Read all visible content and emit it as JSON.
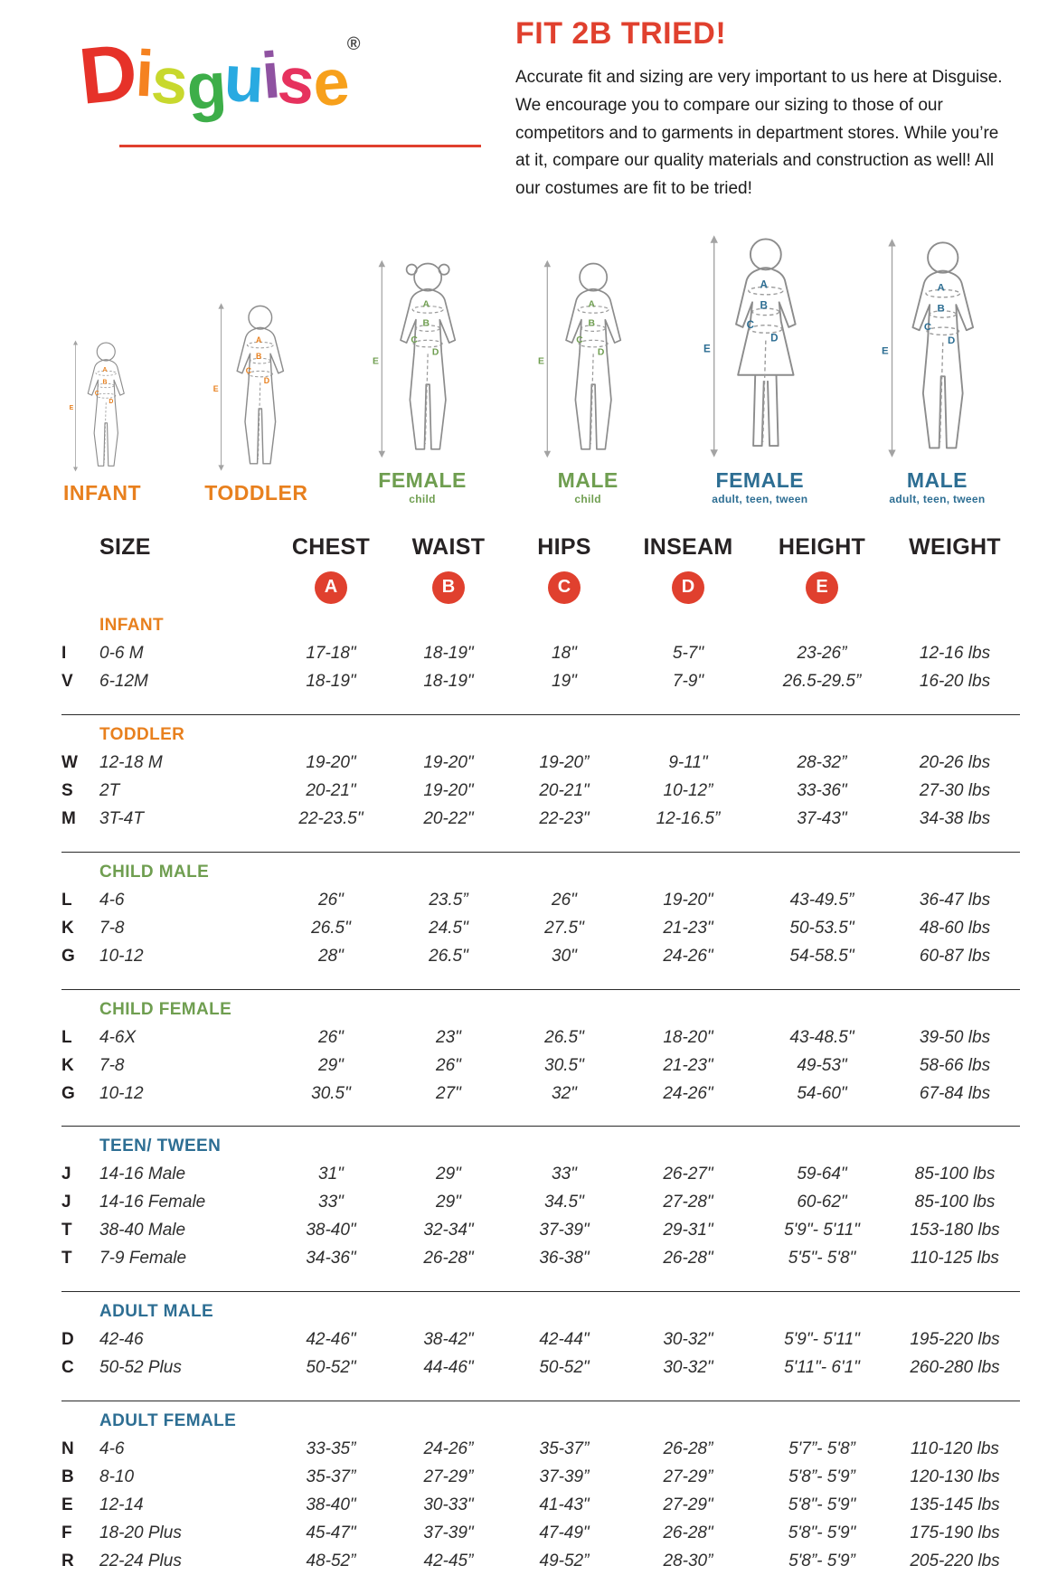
{
  "palette": {
    "red": "#e0402e",
    "orange": "#e8801e",
    "green": "#6f9e50",
    "blue": "#2d6e93",
    "text": "#231f20"
  },
  "logo": {
    "word": "Disguise",
    "registered": "®",
    "letters": [
      {
        "ch": "D",
        "color": "#e63229"
      },
      {
        "ch": "i",
        "color": "#f58220"
      },
      {
        "ch": "s",
        "color": "#c8d82e"
      },
      {
        "ch": "g",
        "color": "#3dae49"
      },
      {
        "ch": "u",
        "color": "#29aae1"
      },
      {
        "ch": "i",
        "color": "#8f52a1"
      },
      {
        "ch": "s",
        "color": "#e6325e"
      },
      {
        "ch": "e",
        "color": "#f7a01b"
      }
    ]
  },
  "intro": {
    "title": "FIT 2B TRIED!",
    "body": "Accurate fit and sizing are very important to us here at Disguise. We encourage you to compare our sizing to those of our competitors and to garments in department stores. While you’re at it, compare our quality materials and construction as well! All our costumes are fit to be tried!"
  },
  "figures": [
    {
      "label": "INFANT",
      "sub": "",
      "color": "#e8801e",
      "type": "infant"
    },
    {
      "label": "TODDLER",
      "sub": "",
      "color": "#e8801e",
      "type": "toddler"
    },
    {
      "label": "FEMALE",
      "sub": "child",
      "color": "#6f9e50",
      "type": "child-female"
    },
    {
      "label": "MALE",
      "sub": "child",
      "color": "#6f9e50",
      "type": "child-male"
    },
    {
      "label": "FEMALE",
      "sub": "adult, teen, tween",
      "color": "#2d6e93",
      "type": "adult-female"
    },
    {
      "label": "MALE",
      "sub": "adult, teen, tween",
      "color": "#2d6e93",
      "type": "adult-male"
    }
  ],
  "table": {
    "headers": [
      "SIZE",
      "CHEST",
      "WAIST",
      "HIPS",
      "INSEAM",
      "HEIGHT",
      "WEIGHT"
    ],
    "markers": [
      "A",
      "B",
      "C",
      "D",
      "E"
    ],
    "marker_color": "#e0402e",
    "sections": [
      {
        "name": "INFANT",
        "color": "#e8801e",
        "rows": [
          {
            "code": "I",
            "size": "0-6 M",
            "values": [
              "17-18\"",
              "18-19\"",
              "18\"",
              "5-7\"",
              "23-26”",
              "12-16 lbs"
            ]
          },
          {
            "code": "V",
            "size": "6-12M",
            "values": [
              "18-19\"",
              "18-19\"",
              "19\"",
              "7-9\"",
              "26.5-29.5”",
              "16-20 lbs"
            ]
          }
        ]
      },
      {
        "name": "TODDLER",
        "color": "#e8801e",
        "rows": [
          {
            "code": "W",
            "size": "12-18 M",
            "values": [
              "19-20\"",
              "19-20\"",
              "19-20”",
              "9-11\"",
              "28-32”",
              "20-26 lbs"
            ]
          },
          {
            "code": "S",
            "size": "2T",
            "values": [
              "20-21\"",
              "19-20\"",
              "20-21\"",
              "10-12”",
              "33-36\"",
              "27-30 lbs"
            ]
          },
          {
            "code": "M",
            "size": "3T-4T",
            "values": [
              "22-23.5\"",
              "20-22\"",
              "22-23\"",
              "12-16.5”",
              "37-43\"",
              "34-38 lbs"
            ]
          }
        ]
      },
      {
        "name": "CHILD MALE",
        "color": "#6f9e50",
        "rows": [
          {
            "code": "L",
            "size": "4-6",
            "values": [
              "26\"",
              "23.5”",
              "26\"",
              "19-20\"",
              "43-49.5”",
              "36-47 lbs"
            ]
          },
          {
            "code": "K",
            "size": "7-8",
            "values": [
              "26.5\"",
              "24.5\"",
              "27.5\"",
              "21-23\"",
              "50-53.5\"",
              "48-60 lbs"
            ]
          },
          {
            "code": "G",
            "size": "10-12",
            "values": [
              "28\"",
              "26.5\"",
              "30\"",
              "24-26\"",
              "54-58.5\"",
              "60-87 lbs"
            ]
          }
        ]
      },
      {
        "name": "CHILD FEMALE",
        "color": "#6f9e50",
        "rows": [
          {
            "code": "L",
            "size": "4-6X",
            "values": [
              "26\"",
              "23\"",
              "26.5\"",
              "18-20\"",
              "43-48.5\"",
              "39-50 lbs"
            ]
          },
          {
            "code": "K",
            "size": "7-8",
            "values": [
              "29\"",
              "26\"",
              "30.5\"",
              "21-23\"",
              "49-53\"",
              "58-66 lbs"
            ]
          },
          {
            "code": "G",
            "size": "10-12",
            "values": [
              "30.5\"",
              "27\"",
              "32\"",
              "24-26\"",
              "54-60\"",
              "67-84 lbs"
            ]
          }
        ]
      },
      {
        "name": "TEEN/ TWEEN",
        "color": "#2d6e93",
        "rows": [
          {
            "code": "J",
            "size": "14-16 Male",
            "values": [
              "31\"",
              "29\"",
              "33\"",
              "26-27\"",
              "59-64\"",
              "85-100 lbs"
            ]
          },
          {
            "code": "J",
            "size": "14-16 Female",
            "values": [
              "33\"",
              "29\"",
              "34.5\"",
              "27-28\"",
              "60-62\"",
              "85-100 lbs"
            ]
          },
          {
            "code": "T",
            "size": "38-40 Male",
            "values": [
              "38-40\"",
              "32-34\"",
              "37-39\"",
              "29-31\"",
              "5'9\"- 5'11\"",
              "153-180 lbs"
            ]
          },
          {
            "code": "T",
            "size": "7-9 Female",
            "values": [
              "34-36\"",
              "26-28\"",
              "36-38\"",
              "26-28\"",
              "5'5\"- 5'8\"",
              "110-125 lbs"
            ]
          }
        ]
      },
      {
        "name": "ADULT MALE",
        "color": "#2d6e93",
        "rows": [
          {
            "code": "D",
            "size": "42-46",
            "values": [
              "42-46\"",
              "38-42\"",
              "42-44\"",
              "30-32\"",
              "5'9\"- 5'11\"",
              "195-220 lbs"
            ]
          },
          {
            "code": "C",
            "size": "50-52 Plus",
            "values": [
              "50-52\"",
              "44-46\"",
              "50-52\"",
              "30-32\"",
              "5'11\"- 6'1\"",
              "260-280 lbs"
            ]
          }
        ]
      },
      {
        "name": "ADULT FEMALE",
        "color": "#2d6e93",
        "rows": [
          {
            "code": "N",
            "size": "4-6",
            "values": [
              "33-35”",
              "24-26”",
              "35-37”",
              "26-28”",
              "5'7”- 5'8”",
              "110-120 lbs"
            ]
          },
          {
            "code": "B",
            "size": "8-10",
            "values": [
              "35-37”",
              "27-29”",
              "37-39”",
              "27-29”",
              "5'8”- 5'9”",
              "120-130 lbs"
            ]
          },
          {
            "code": "E",
            "size": "12-14",
            "values": [
              "38-40\"",
              "30-33\"",
              "41-43\"",
              "27-29\"",
              "5'8\"- 5'9\"",
              "135-145 lbs"
            ]
          },
          {
            "code": "F",
            "size": "18-20 Plus",
            "values": [
              "45-47\"",
              "37-39\"",
              "47-49\"",
              "26-28\"",
              "5'8\"- 5'9\"",
              "175-190 lbs"
            ]
          },
          {
            "code": "R",
            "size": "22-24 Plus",
            "values": [
              "48-52”",
              "42-45”",
              "49-52”",
              "28-30”",
              "5'8”- 5'9”",
              "205-220 lbs"
            ]
          }
        ]
      }
    ]
  }
}
